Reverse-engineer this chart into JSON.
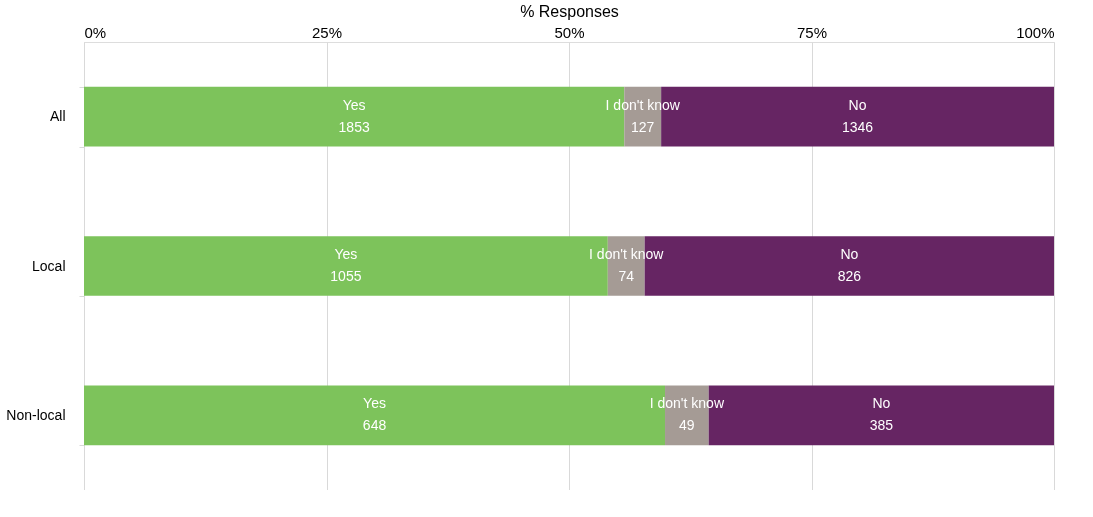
{
  "chart_data": {
    "type": "bar",
    "orientation": "horizontal",
    "stacked": true,
    "xlabel": "% Responses",
    "categories": [
      "All",
      "Local",
      "Non-local"
    ],
    "series": [
      {
        "name": "Yes",
        "color": "#7dc35b",
        "values": [
          55.7,
          54.0,
          59.9
        ]
      },
      {
        "name": "I don't know",
        "color": "#a59b95",
        "values": [
          3.8,
          3.8,
          4.5
        ]
      },
      {
        "name": "No",
        "color": "#662563",
        "values": [
          40.5,
          42.2,
          35.6
        ]
      }
    ],
    "annotations": [
      "1853",
      "127",
      "1346",
      "1055",
      "74",
      "826",
      "648",
      "49",
      "385"
    ],
    "xlim": [
      0,
      100
    ],
    "xticks": [
      {
        "value": 0,
        "label": "0%"
      },
      {
        "value": 25,
        "label": "25%"
      },
      {
        "value": 50,
        "label": "50%"
      },
      {
        "value": 75,
        "label": "75%"
      },
      {
        "value": 100,
        "label": "100%"
      }
    ],
    "grid": "x",
    "legend": false
  }
}
